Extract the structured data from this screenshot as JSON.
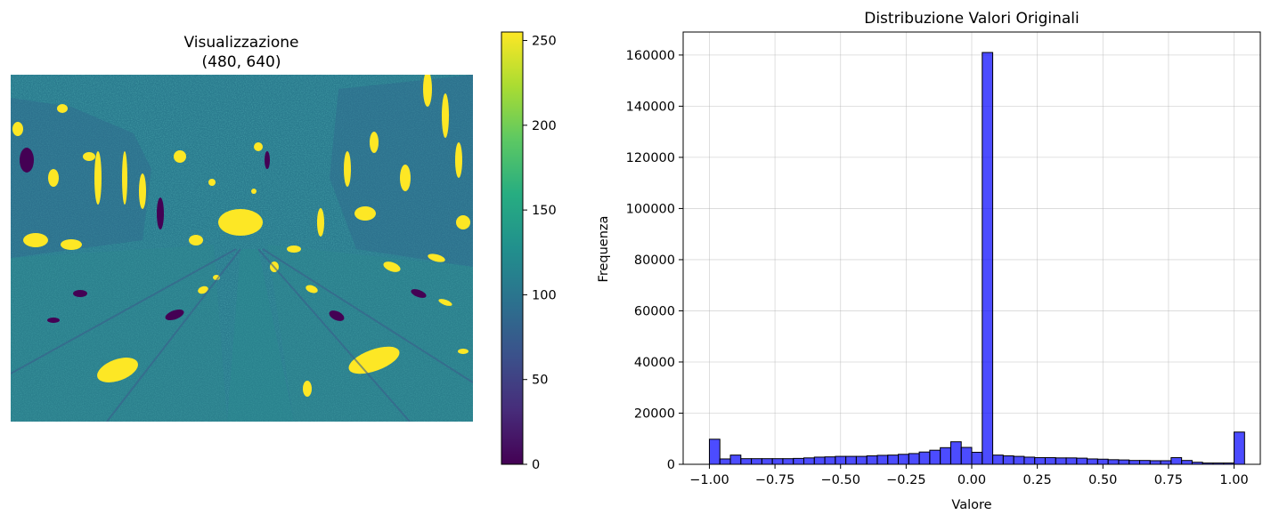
{
  "chart_data": [
    {
      "type": "heatmap",
      "title_line1": "Visualizzazione",
      "title_line2": "(480, 640)",
      "image_shape": [
        480,
        640
      ],
      "colormap": "viridis",
      "axes": "off",
      "colorbar": {
        "ticks": [
          0,
          50,
          100,
          150,
          200,
          250
        ],
        "tick_labels": [
          "0",
          "50",
          "100",
          "150",
          "200",
          "250"
        ],
        "range": [
          0,
          255
        ],
        "colors": [
          "#440154",
          "#472c7a",
          "#3b518b",
          "#2c718e",
          "#21908d",
          "#27ad81",
          "#5cc863",
          "#aadc32",
          "#fde725"
        ]
      }
    },
    {
      "type": "bar",
      "title": "Distribuzione Valori Originali",
      "xlabel": "Valore",
      "ylabel": "Frequenza",
      "xlim": [
        -1.1,
        1.1
      ],
      "ylim": [
        0,
        169000
      ],
      "grid": true,
      "bar_color": "#0000ff",
      "bar_alpha": 0.7,
      "edge_color": "#000000",
      "bin_start": -1.0,
      "bin_width": 0.04,
      "counts": [
        9800,
        2100,
        3600,
        2200,
        2200,
        2200,
        2200,
        2200,
        2300,
        2500,
        2800,
        2900,
        3100,
        3100,
        3100,
        3300,
        3500,
        3600,
        3900,
        4200,
        4800,
        5500,
        6500,
        8800,
        6600,
        4700,
        161000,
        3600,
        3300,
        3100,
        2800,
        2600,
        2600,
        2500,
        2500,
        2400,
        2100,
        2000,
        1800,
        1700,
        1500,
        1500,
        1400,
        1400,
        2600,
        1500,
        800,
        500,
        500,
        500,
        12600
      ],
      "x_ticks": [
        -1.0,
        -0.75,
        -0.5,
        -0.25,
        0.0,
        0.25,
        0.5,
        0.75,
        1.0
      ],
      "x_tick_labels": [
        "−1.00",
        "−0.75",
        "−0.50",
        "−0.25",
        "0.00",
        "0.25",
        "0.50",
        "0.75",
        "1.00"
      ],
      "y_ticks": [
        0,
        20000,
        40000,
        60000,
        80000,
        100000,
        120000,
        140000,
        160000
      ],
      "y_tick_labels": [
        "0",
        "20000",
        "40000",
        "60000",
        "80000",
        "100000",
        "120000",
        "140000",
        "160000"
      ]
    }
  ]
}
